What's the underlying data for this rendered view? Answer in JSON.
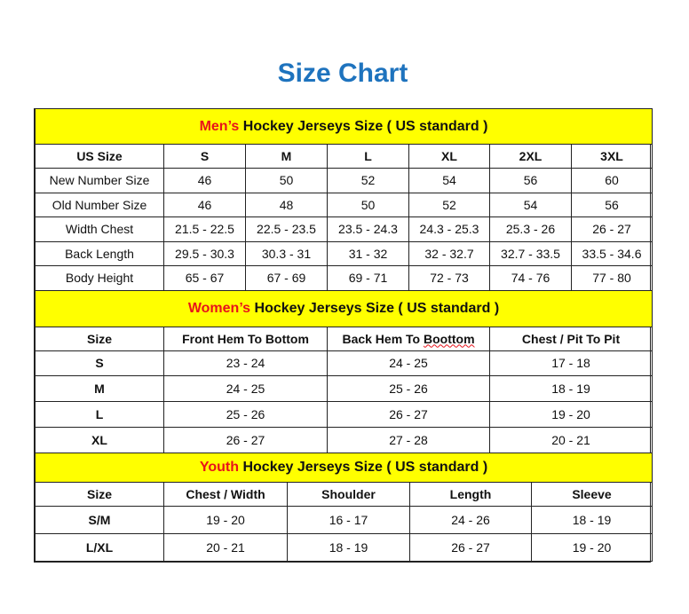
{
  "title": "Size Chart",
  "colors": {
    "title": "#1e73be",
    "section_bg": "#ffff00",
    "highlight": "#e8131b"
  },
  "sections": [
    {
      "highlight": "Men’s",
      "heading": " Hockey Jerseys Size ( US standard )",
      "columns": [
        "US Size",
        "S",
        "M",
        "L",
        "XL",
        "2XL",
        "3XL"
      ],
      "rows": [
        [
          "New Number Size",
          "46",
          "50",
          "52",
          "54",
          "56",
          "60"
        ],
        [
          "Old Number Size",
          "46",
          "48",
          "50",
          "52",
          "54",
          "56"
        ],
        [
          "Width Chest",
          "21.5 - 22.5",
          "22.5 - 23.5",
          "23.5 - 24.3",
          "24.3 - 25.3",
          "25.3 - 26",
          "26 - 27"
        ],
        [
          "Back Length",
          "29.5 - 30.3",
          "30.3 - 31",
          "31 - 32",
          "32 - 32.7",
          "32.7 - 33.5",
          "33.5 - 34.6"
        ],
        [
          "Body Height",
          "65 - 67",
          "67 - 69",
          "69 - 71",
          "72 - 73",
          "74 - 76",
          "77 - 80"
        ]
      ]
    },
    {
      "highlight": "Women’s",
      "heading": " Hockey Jerseys Size ( US standard )",
      "columns": [
        "Size",
        "Front Hem To Bottom",
        "Back Hem To Boottom",
        "Chest / Pit To Pit"
      ],
      "rows": [
        [
          "S",
          "23 - 24",
          "24 - 25",
          "17 - 18"
        ],
        [
          "M",
          "24 - 25",
          "25 - 26",
          "18 - 19"
        ],
        [
          "L",
          "25 - 26",
          "26 - 27",
          "19 - 20"
        ],
        [
          "XL",
          "26 - 27",
          "27 - 28",
          "20 - 21"
        ]
      ]
    },
    {
      "highlight": "Youth",
      "heading": " Hockey Jerseys Size ( US standard )",
      "columns": [
        "Size",
        "Chest / Width",
        "Shoulder",
        "Length",
        "Sleeve"
      ],
      "rows": [
        [
          "S/M",
          "19 - 20",
          "16 - 17",
          "24 - 26",
          "18 - 19"
        ],
        [
          "L/XL",
          "20 - 21",
          "18 - 19",
          "26 - 27",
          "19 - 20"
        ]
      ]
    }
  ]
}
